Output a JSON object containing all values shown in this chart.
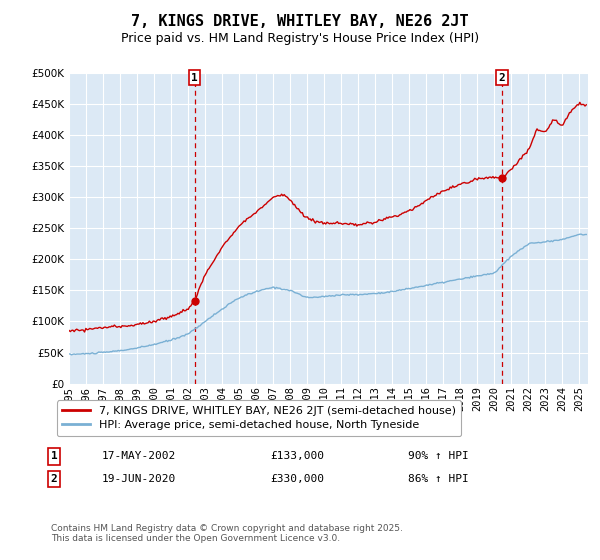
{
  "title": "7, KINGS DRIVE, WHITLEY BAY, NE26 2JT",
  "subtitle": "Price paid vs. HM Land Registry's House Price Index (HPI)",
  "ylim": [
    0,
    500000
  ],
  "yticks": [
    0,
    50000,
    100000,
    150000,
    200000,
    250000,
    300000,
    350000,
    400000,
    450000,
    500000
  ],
  "xlim_start": 1995.0,
  "xlim_end": 2025.5,
  "marker1_x": 2002.38,
  "marker1_y": 133000,
  "marker1_label": "1",
  "marker1_date": "17-MAY-2002",
  "marker1_price": "£133,000",
  "marker1_hpi": "90% ↑ HPI",
  "marker2_x": 2020.46,
  "marker2_y": 330000,
  "marker2_label": "2",
  "marker2_date": "19-JUN-2020",
  "marker2_price": "£330,000",
  "marker2_hpi": "86% ↑ HPI",
  "line1_color": "#cc0000",
  "line2_color": "#7ab0d4",
  "background_color": "#dce9f5",
  "grid_color": "#ffffff",
  "legend1_label": "7, KINGS DRIVE, WHITLEY BAY, NE26 2JT (semi-detached house)",
  "legend2_label": "HPI: Average price, semi-detached house, North Tyneside",
  "footnote": "Contains HM Land Registry data © Crown copyright and database right 2025.\nThis data is licensed under the Open Government Licence v3.0.",
  "title_fontsize": 11,
  "subtitle_fontsize": 9,
  "tick_fontsize": 7.5,
  "legend_fontsize": 8
}
